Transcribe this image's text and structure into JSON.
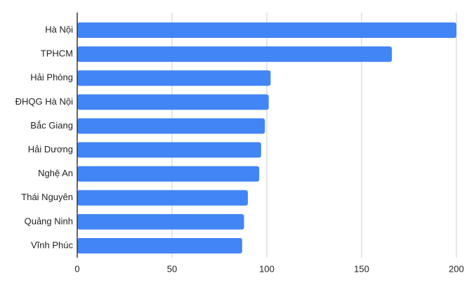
{
  "chart_data": {
    "type": "hbar",
    "categories": [
      "Hà Nội",
      "TPHCM",
      "Hải Phòng",
      "ĐHQG Hà Nội",
      "Bắc Giang",
      "Hải Dương",
      "Nghệ An",
      "Thái Nguyên",
      "Quảng Ninh",
      "Vĩnh Phúc"
    ],
    "values": [
      200,
      166,
      102,
      101,
      99,
      97,
      96,
      90,
      88,
      87
    ],
    "color": "#4285f4",
    "xlim": [
      0,
      200
    ],
    "xticks": [
      0,
      50,
      100,
      150,
      200
    ],
    "grid": true
  }
}
